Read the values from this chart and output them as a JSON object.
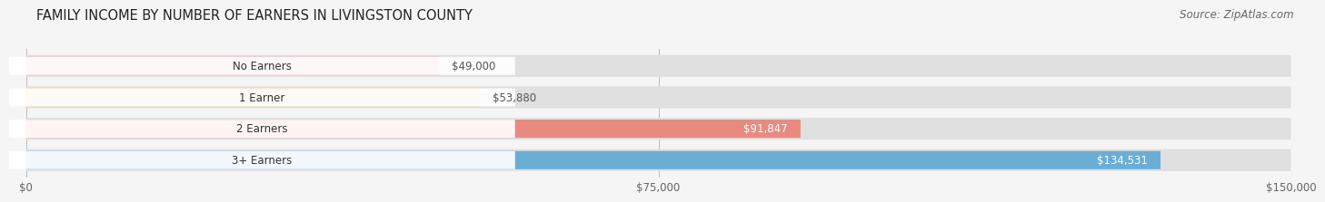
{
  "title": "FAMILY INCOME BY NUMBER OF EARNERS IN LIVINGSTON COUNTY",
  "source": "Source: ZipAtlas.com",
  "categories": [
    "No Earners",
    "1 Earner",
    "2 Earners",
    "3+ Earners"
  ],
  "values": [
    49000,
    53880,
    91847,
    134531
  ],
  "labels": [
    "$49,000",
    "$53,880",
    "$91,847",
    "$134,531"
  ],
  "bar_colors": [
    "#f0a0b5",
    "#f5c98a",
    "#e88a80",
    "#6aadd5"
  ],
  "bar_bg_color": "#e0e0e0",
  "label_colors": [
    "#555555",
    "#555555",
    "#ffffff",
    "#ffffff"
  ],
  "xlim": [
    0,
    150000
  ],
  "xticks": [
    0,
    75000,
    150000
  ],
  "xticklabels": [
    "$0",
    "$75,000",
    "$150,000"
  ],
  "bg_color": "#f5f5f5",
  "title_fontsize": 10.5,
  "source_fontsize": 8.5,
  "bar_label_fontsize": 8.5,
  "category_fontsize": 8.5,
  "tick_fontsize": 8.5
}
